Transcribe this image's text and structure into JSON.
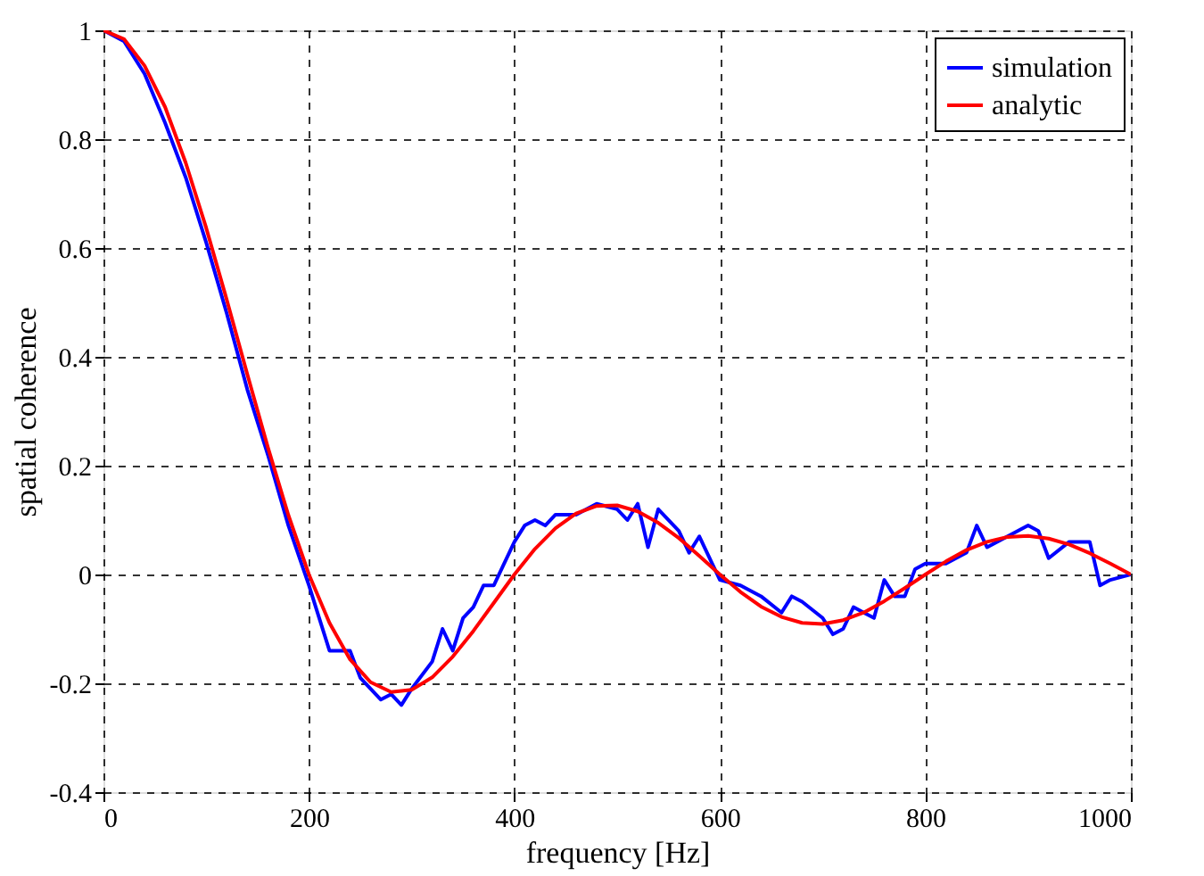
{
  "chart_data": {
    "type": "line",
    "xlabel": "frequency [Hz]",
    "ylabel": "spatial coherence",
    "xlim": [
      0,
      1000
    ],
    "xticks": [
      0,
      200,
      400,
      600,
      800,
      1000
    ],
    "ylim": [
      -0.4,
      1
    ],
    "yticks": [
      -0.4,
      -0.2,
      0,
      0.2,
      0.4,
      0.6,
      0.8,
      1
    ],
    "grid": true,
    "legend": "top right",
    "line_style": "solid",
    "marker": "none",
    "series": [
      {
        "name": "simulation",
        "color": "#0000ff",
        "x": [
          0,
          20,
          40,
          60,
          80,
          100,
          120,
          140,
          160,
          180,
          200,
          210,
          220,
          240,
          250,
          260,
          270,
          280,
          290,
          300,
          320,
          330,
          340,
          350,
          360,
          370,
          380,
          400,
          410,
          420,
          430,
          440,
          460,
          480,
          500,
          510,
          520,
          530,
          540,
          560,
          570,
          580,
          600,
          620,
          640,
          660,
          670,
          680,
          700,
          710,
          720,
          730,
          740,
          750,
          760,
          770,
          780,
          790,
          800,
          820,
          840,
          850,
          860,
          880,
          900,
          910,
          920,
          940,
          960,
          970,
          980,
          1000
        ],
        "values": [
          1,
          0.98,
          0.92,
          0.83,
          0.73,
          0.61,
          0.48,
          0.34,
          0.22,
          0.09,
          -0.02,
          -0.08,
          -0.14,
          -0.14,
          -0.19,
          -0.21,
          -0.23,
          -0.22,
          -0.24,
          -0.21,
          -0.16,
          -0.1,
          -0.14,
          -0.08,
          -0.06,
          -0.02,
          -0.02,
          0.06,
          0.09,
          0.1,
          0.09,
          0.11,
          0.11,
          0.13,
          0.12,
          0.1,
          0.13,
          0.05,
          0.12,
          0.08,
          0.04,
          0.07,
          -0.01,
          -0.02,
          -0.04,
          -0.07,
          -0.04,
          -0.05,
          -0.08,
          -0.11,
          -0.1,
          -0.06,
          -0.07,
          -0.08,
          -0.01,
          -0.04,
          -0.04,
          0.01,
          0.02,
          0.02,
          0.04,
          0.09,
          0.05,
          0.07,
          0.09,
          0.08,
          0.03,
          0.06,
          0.06,
          -0.02,
          -0.01,
          0
        ]
      },
      {
        "name": "analytic",
        "color": "#ff0000",
        "x": [
          0,
          20,
          40,
          60,
          80,
          100,
          120,
          140,
          160,
          180,
          200,
          220,
          240,
          260,
          280,
          300,
          320,
          340,
          360,
          380,
          400,
          420,
          440,
          460,
          480,
          500,
          520,
          540,
          560,
          580,
          600,
          620,
          640,
          660,
          680,
          700,
          720,
          740,
          760,
          780,
          800,
          820,
          840,
          860,
          880,
          900,
          920,
          940,
          960,
          980,
          1000
        ],
        "values": [
          1,
          0.984,
          0.935,
          0.859,
          0.757,
          0.637,
          0.505,
          0.368,
          0.234,
          0.109,
          0,
          -0.089,
          -0.156,
          -0.198,
          -0.216,
          -0.212,
          -0.189,
          -0.151,
          -0.104,
          -0.052,
          0,
          0.047,
          0.085,
          0.112,
          0.126,
          0.127,
          0.116,
          0.095,
          0.067,
          0.034,
          0,
          -0.032,
          -0.059,
          -0.078,
          -0.089,
          -0.091,
          -0.084,
          -0.07,
          -0.049,
          -0.025,
          0,
          0.024,
          0.045,
          0.06,
          0.069,
          0.071,
          0.066,
          0.055,
          0.039,
          0.02,
          0
        ]
      }
    ]
  }
}
